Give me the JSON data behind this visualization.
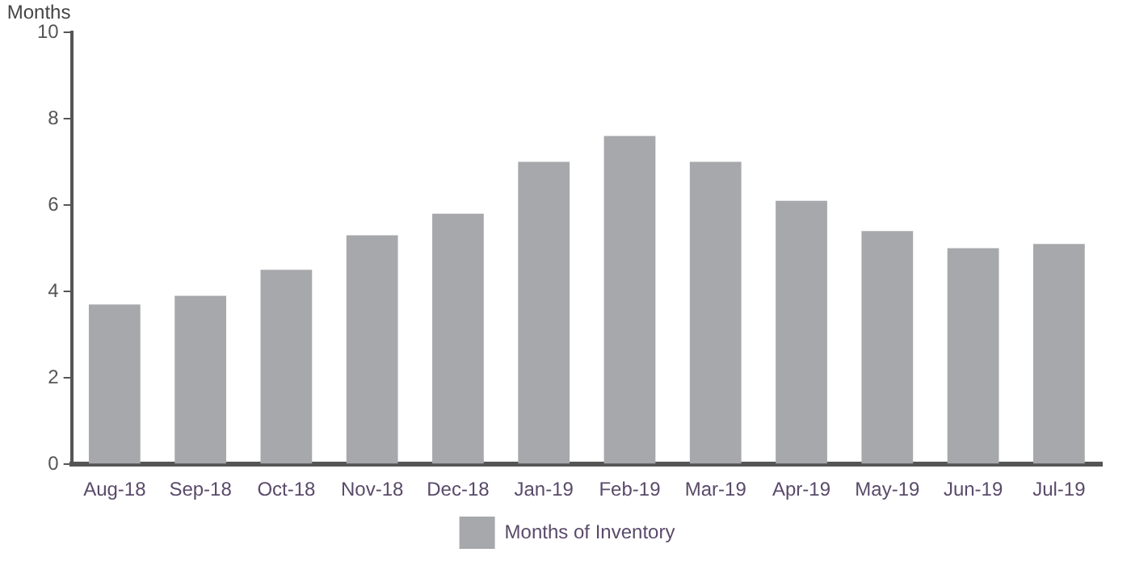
{
  "chart_data": {
    "type": "bar",
    "ylabel": "Months",
    "categories": [
      "Aug-18",
      "Sep-18",
      "Oct-18",
      "Nov-18",
      "Dec-18",
      "Jan-19",
      "Feb-19",
      "Mar-19",
      "Apr-19",
      "May-19",
      "Jun-19",
      "Jul-19"
    ],
    "series": [
      {
        "name": "Months of Inventory",
        "color": "#a7a8ab",
        "values": [
          3.7,
          3.9,
          4.5,
          5.3,
          5.8,
          7.0,
          7.6,
          7.0,
          6.1,
          5.4,
          5.0,
          5.1
        ]
      }
    ],
    "ylim": [
      0,
      10
    ],
    "yticks": [
      0,
      2,
      4,
      6,
      8,
      10
    ],
    "grid": false,
    "legend": "bottom"
  }
}
